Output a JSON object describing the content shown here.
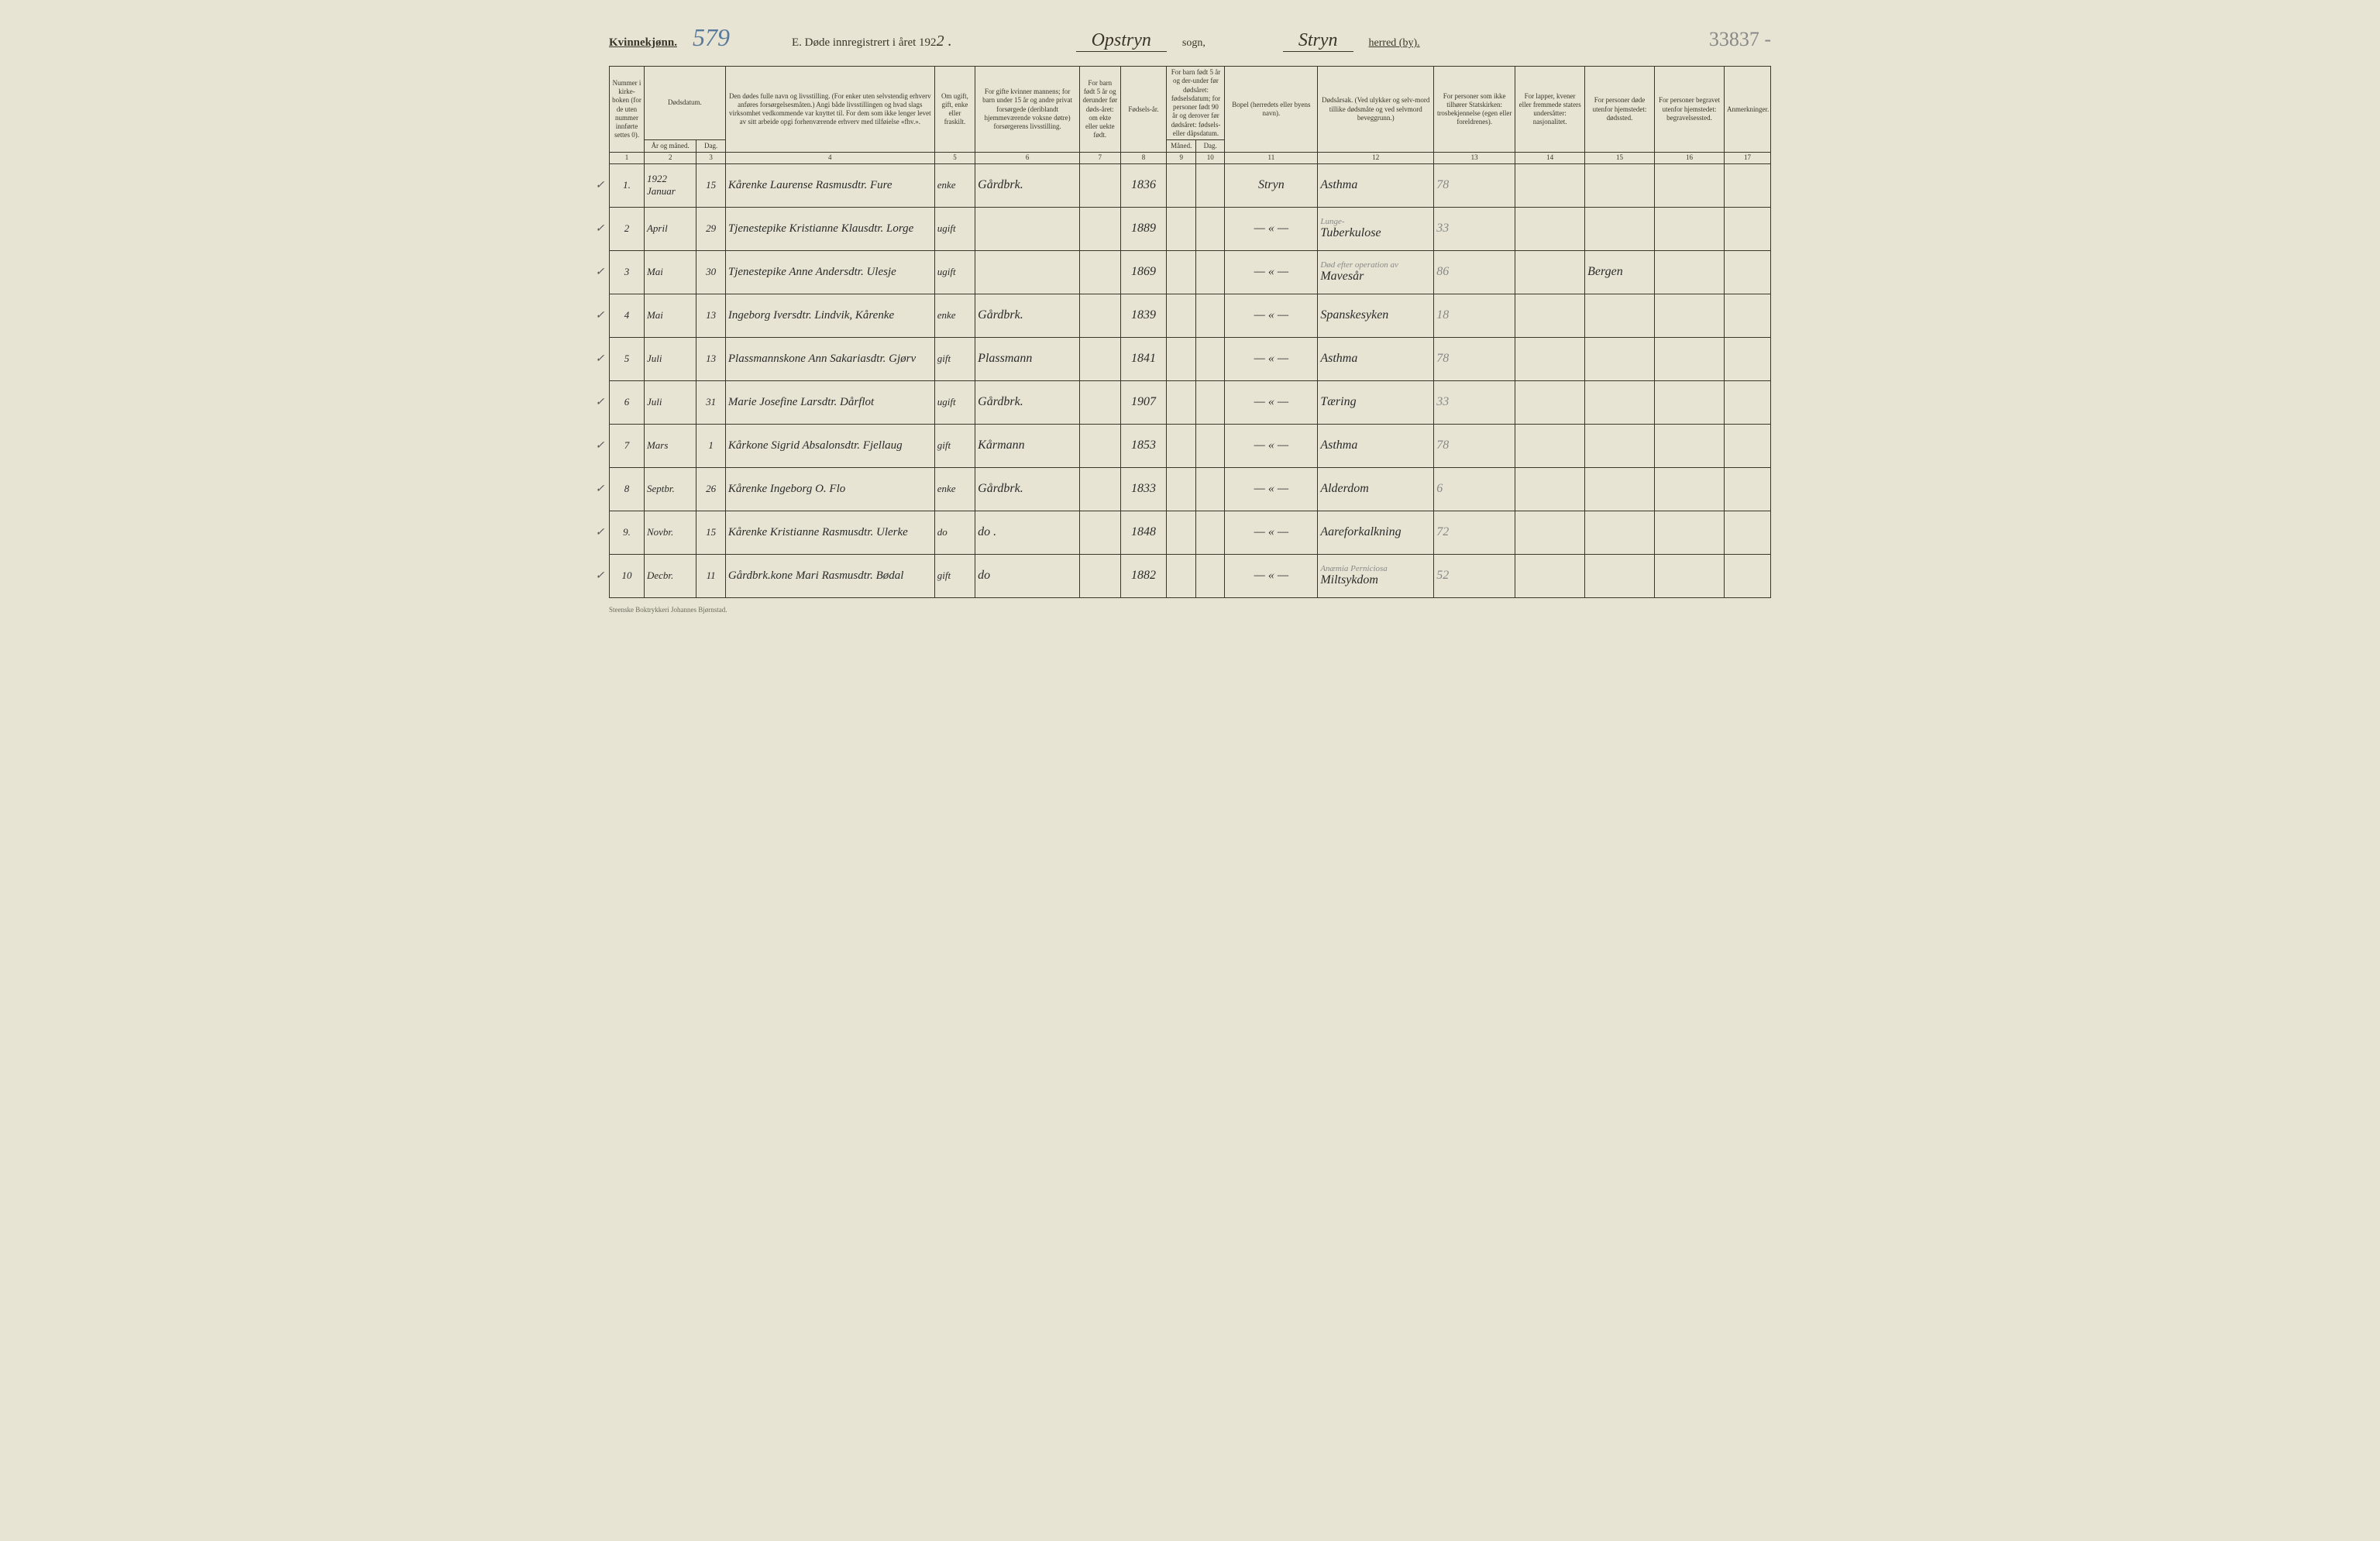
{
  "header": {
    "gender_label": "Kvinnekjønn.",
    "page_number": "579",
    "title_prefix": "E.  Døde innregistrert i året 192",
    "year_suffix": "2 .",
    "sogn_value": "Opstryn",
    "sogn_label": "sogn,",
    "herred_value": "Stryn",
    "herred_label": "herred (by).",
    "top_right_number": "33837 -"
  },
  "columns": {
    "c1": "Nummer i kirke-boken (for de uten nummer innførte settes 0).",
    "c2_3_top": "Dødsdatum.",
    "c2": "År og måned.",
    "c3": "Dag.",
    "c4": "Den dødes fulle navn og livsstilling. (For enker uten selvstendig erhverv anføres forsørgelsesmåten.) Angi både livsstillingen og hvad slags virksomhet vedkommende var knyttet til. For dem som ikke lenger levet av sitt arbeide opgi forhenværende erhverv med tilføielse «fhv.».",
    "c5": "Om ugift, gift, enke eller fraskilt.",
    "c6": "For gifte kvinner mannens; for barn under 15 år og andre privat forsørgede (deriblandt hjemmeværende voksne døtre) forsørgerens livsstilling.",
    "c7": "For barn født 5 år og derunder før døds-året: om ekte eller uekte født.",
    "c8": "Fødsels-år.",
    "c9_10_top": "For barn født 5 år og der-under før dødsåret: fødselsdatum; for personer født 90 år og derover før dødsåret: fødsels- eller dåpsdatum.",
    "c9": "Måned.",
    "c10": "Dag.",
    "c11": "Bopel (herredets eller byens navn).",
    "c12": "Dødsårsak. (Ved ulykker og selv-mord tillike dødsmåte og ved selvmord beveggrunn.)",
    "c13": "For personer som ikke tilhører Statskirken: trosbekjennelse (egen eller foreldrenes).",
    "c14": "For lapper, kvener eller fremmede staters undersåtter: nasjonalitet.",
    "c15": "For personer døde utenfor hjemstedet: dødssted.",
    "c16": "For personer begravet utenfor hjemstedet: begravelsessted.",
    "c17": "Anmerkninger."
  },
  "colnums": [
    "1",
    "2",
    "3",
    "4",
    "5",
    "6",
    "7",
    "8",
    "9",
    "10",
    "11",
    "12",
    "13",
    "14",
    "15",
    "16",
    "17"
  ],
  "rows": [
    {
      "n": "1.",
      "month": "1922 Januar",
      "day": "15",
      "name": "Kårenke Laurense Rasmusdtr. Fure",
      "status": "enke",
      "occ": "Gårdbrk.",
      "c7": "",
      "birth": "1836",
      "bopel": "Stryn",
      "cause": "Asthma",
      "c13": "78",
      "c15": ""
    },
    {
      "n": "2",
      "month": "April",
      "day": "29",
      "name": "Tjenestepike Kristianne Klausdtr. Lorge",
      "status": "ugift",
      "occ": "",
      "c7": "",
      "birth": "1889",
      "bopel": "— « —",
      "cause_pencil": "Lunge-",
      "cause": "Tuberkulose",
      "c13": "33",
      "c15": ""
    },
    {
      "n": "3",
      "month": "Mai",
      "day": "30",
      "name": "Tjenestepike Anne Andersdtr. Ulesje",
      "status": "ugift",
      "occ": "",
      "c7": "",
      "birth": "1869",
      "bopel": "— « —",
      "cause_pencil": "Død efter operation av",
      "cause": "Mavesår",
      "c13": "86",
      "c15": "Bergen"
    },
    {
      "n": "4",
      "month": "Mai",
      "day": "13",
      "name": "Ingeborg Iversdtr. Lindvik, Kårenke",
      "status": "enke",
      "occ": "Gårdbrk.",
      "c7": "",
      "birth": "1839",
      "bopel": "— « —",
      "cause": "Spanskesyken",
      "c13": "18",
      "c15": ""
    },
    {
      "n": "5",
      "month": "Juli",
      "day": "13",
      "name": "Plassmannskone Ann Sakariasdtr. Gjørv",
      "status": "gift",
      "occ": "Plassmann",
      "c7": "",
      "birth": "1841",
      "bopel": "— « —",
      "cause": "Asthma",
      "c13": "78",
      "c15": ""
    },
    {
      "n": "6",
      "month": "Juli",
      "day": "31",
      "name": "Marie Josefine Larsdtr. Dårflot",
      "status": "ugift",
      "occ": "Gårdbrk.",
      "c7": "",
      "birth": "1907",
      "bopel": "— « —",
      "cause": "Tæring",
      "c13": "33",
      "c15": ""
    },
    {
      "n": "7",
      "month": "Mars",
      "day": "1",
      "name": "Kårkone Sigrid Absalonsdtr. Fjellaug",
      "status": "gift",
      "occ": "Kårmann",
      "c7": "",
      "birth": "1853",
      "bopel": "— « —",
      "cause": "Asthma",
      "c13": "78",
      "c15": ""
    },
    {
      "n": "8",
      "month": "Septbr.",
      "day": "26",
      "name": "Kårenke Ingeborg O. Flo",
      "status": "enke",
      "occ": "Gårdbrk.",
      "c7": "",
      "birth": "1833",
      "bopel": "— « —",
      "cause": "Alderdom",
      "c13": "6",
      "c15": ""
    },
    {
      "n": "9.",
      "month": "Novbr.",
      "day": "15",
      "name": "Kårenke Kristianne Rasmusdtr. Ulerke",
      "status": "do",
      "occ": "do .",
      "c7": "",
      "birth": "1848",
      "bopel": "— « —",
      "cause": "Aareforkalkning",
      "c13": "72",
      "c15": ""
    },
    {
      "n": "10",
      "month": "Decbr.",
      "day": "11",
      "name": "Gårdbrk.kone Mari Rasmusdtr. Bødal",
      "status": "gift",
      "occ": "do",
      "c7": "",
      "birth": "1882",
      "bopel": "— « —",
      "cause_pencil": "Anæmia Perniciosa",
      "cause": "Miltsykdom",
      "c13": "52",
      "c15": ""
    }
  ],
  "footer": "Steenske Boktrykkeri Johannes Bjørnstad.",
  "style": {
    "background": "#e8e4d4",
    "ink": "#2a2a2a",
    "pencil": "#888888",
    "border": "#3a3528",
    "header_number_color": "#5a7a9a",
    "col_widths_pct": [
      3.0,
      4.5,
      2.5,
      18.0,
      3.5,
      9.0,
      3.5,
      4.0,
      2.5,
      2.5,
      8.0,
      10.0,
      7.0,
      6.0,
      6.0,
      6.0,
      4.0
    ]
  }
}
